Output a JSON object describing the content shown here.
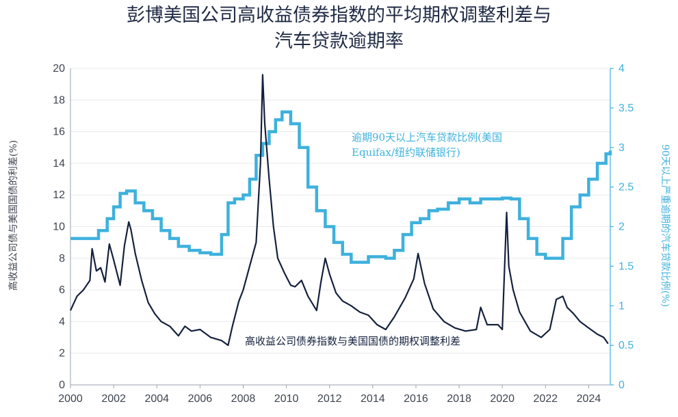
{
  "chart_data": {
    "type": "line",
    "title_line1": "彭博美国公司高收益债券指数的平均期权调整利差与",
    "title_line2": "汽车贷款逾期率",
    "ylabel_left": "高收益公司债与美国国债的利差(%)",
    "ylabel_right": "90天以上严重逾期的汽车贷款比例(%)",
    "xlim": [
      2000,
      2025
    ],
    "ylim_left": [
      0,
      20
    ],
    "ylim_right": [
      0,
      4
    ],
    "x_ticks": [
      "2000",
      "2002",
      "2004",
      "2006",
      "2008",
      "2010",
      "2012",
      "2014",
      "2016",
      "2018",
      "2020",
      "2022",
      "2024"
    ],
    "x_tick_values": [
      2000,
      2002,
      2004,
      2006,
      2008,
      2010,
      2012,
      2014,
      2016,
      2018,
      2020,
      2022,
      2024
    ],
    "y_ticks_left": [
      "0",
      "2",
      "4",
      "6",
      "8",
      "10",
      "12",
      "14",
      "16",
      "18",
      "20"
    ],
    "y_tick_values_left": [
      0,
      2,
      4,
      6,
      8,
      10,
      12,
      14,
      16,
      18,
      20
    ],
    "y_ticks_right": [
      "0",
      "0.5",
      "1",
      "1.5",
      "2",
      "2.5",
      "3",
      "3.5",
      "4"
    ],
    "y_tick_values_right": [
      0,
      0.5,
      1,
      1.5,
      2,
      2.5,
      3,
      3.5,
      4
    ],
    "colors": {
      "spread": "#14213d",
      "delinquency": "#3eb1dd",
      "axis": "#9aa3ad",
      "title": "#1f2a44"
    },
    "series": [
      {
        "name": "高收益公司债券指数与美国国债的期权调整利差",
        "axis": "left",
        "label": "高收益公司债券指数与美国国债的期权调整利差",
        "x": [
          2000.0,
          2000.3,
          2000.6,
          2000.9,
          2001.0,
          2001.2,
          2001.4,
          2001.6,
          2001.8,
          2002.0,
          2002.3,
          2002.5,
          2002.7,
          2002.8,
          2003.0,
          2003.3,
          2003.6,
          2003.9,
          2004.2,
          2004.6,
          2005.0,
          2005.3,
          2005.6,
          2006.0,
          2006.5,
          2007.0,
          2007.3,
          2007.5,
          2007.8,
          2008.0,
          2008.3,
          2008.6,
          2008.8,
          2008.9,
          2009.0,
          2009.2,
          2009.4,
          2009.6,
          2009.9,
          2010.2,
          2010.4,
          2010.7,
          2011.0,
          2011.4,
          2011.6,
          2011.8,
          2012.0,
          2012.3,
          2012.6,
          2013.0,
          2013.4,
          2013.8,
          2014.2,
          2014.6,
          2015.0,
          2015.5,
          2015.9,
          2016.1,
          2016.4,
          2016.8,
          2017.3,
          2017.8,
          2018.3,
          2018.8,
          2019.0,
          2019.3,
          2019.8,
          2020.0,
          2020.2,
          2020.3,
          2020.5,
          2020.8,
          2021.3,
          2021.8,
          2022.2,
          2022.5,
          2022.8,
          2023.0,
          2023.3,
          2023.6,
          2024.0,
          2024.4,
          2024.7,
          2024.9
        ],
        "values": [
          4.7,
          5.6,
          6.0,
          6.6,
          8.6,
          7.2,
          7.4,
          6.5,
          8.9,
          7.9,
          6.3,
          8.8,
          10.3,
          9.8,
          8.3,
          6.6,
          5.2,
          4.5,
          4.0,
          3.7,
          3.1,
          3.7,
          3.4,
          3.5,
          3.0,
          2.8,
          2.5,
          3.7,
          5.3,
          6.0,
          7.5,
          9.0,
          14.0,
          19.6,
          16.5,
          13.0,
          10.0,
          8.0,
          7.1,
          6.3,
          6.2,
          6.6,
          5.6,
          4.7,
          6.5,
          8.0,
          7.0,
          5.8,
          5.3,
          5.0,
          4.6,
          4.4,
          3.8,
          3.5,
          4.3,
          5.5,
          6.7,
          8.3,
          6.4,
          4.8,
          4.0,
          3.6,
          3.4,
          3.5,
          4.9,
          3.8,
          3.8,
          3.5,
          10.9,
          7.5,
          6.0,
          4.6,
          3.4,
          3.0,
          3.5,
          5.4,
          5.6,
          4.9,
          4.5,
          4.0,
          3.6,
          3.2,
          3.0,
          2.6
        ]
      },
      {
        "name": "逾期90天以上汽车贷款比例(美国Equifax/纽约联储银行)",
        "axis": "right",
        "label_line1": "逾期90天以上汽车贷款比例(美国",
        "label_line2": "Equifax/纽约联储银行)",
        "x": [
          2000.0,
          2001.0,
          2001.3,
          2001.7,
          2002.0,
          2002.3,
          2002.6,
          2003.0,
          2003.4,
          2003.8,
          2004.2,
          2004.6,
          2005.0,
          2005.5,
          2006.0,
          2006.5,
          2007.0,
          2007.3,
          2007.6,
          2008.0,
          2008.3,
          2008.6,
          2008.9,
          2009.2,
          2009.5,
          2009.8,
          2010.2,
          2010.6,
          2011.0,
          2011.4,
          2011.8,
          2012.2,
          2012.6,
          2013.0,
          2013.4,
          2013.8,
          2014.2,
          2014.6,
          2015.0,
          2015.4,
          2015.8,
          2016.2,
          2016.6,
          2017.0,
          2017.5,
          2018.0,
          2018.5,
          2019.0,
          2019.5,
          2020.0,
          2020.4,
          2020.8,
          2021.2,
          2021.6,
          2022.0,
          2022.4,
          2022.8,
          2023.2,
          2023.6,
          2024.0,
          2024.4,
          2024.8,
          2025.0
        ],
        "values": [
          1.85,
          1.85,
          1.95,
          2.1,
          2.25,
          2.42,
          2.45,
          2.3,
          2.2,
          2.1,
          1.95,
          1.85,
          1.75,
          1.7,
          1.67,
          1.65,
          1.9,
          2.3,
          2.35,
          2.4,
          2.6,
          2.9,
          3.05,
          3.2,
          3.35,
          3.45,
          3.3,
          3.0,
          2.5,
          2.2,
          2.0,
          1.8,
          1.65,
          1.55,
          1.55,
          1.62,
          1.62,
          1.6,
          1.7,
          1.9,
          2.05,
          2.1,
          2.2,
          2.22,
          2.3,
          2.35,
          2.3,
          2.35,
          2.35,
          2.36,
          2.35,
          2.1,
          1.85,
          1.65,
          1.6,
          1.6,
          1.85,
          2.25,
          2.4,
          2.6,
          2.8,
          2.92,
          2.96
        ]
      }
    ]
  }
}
